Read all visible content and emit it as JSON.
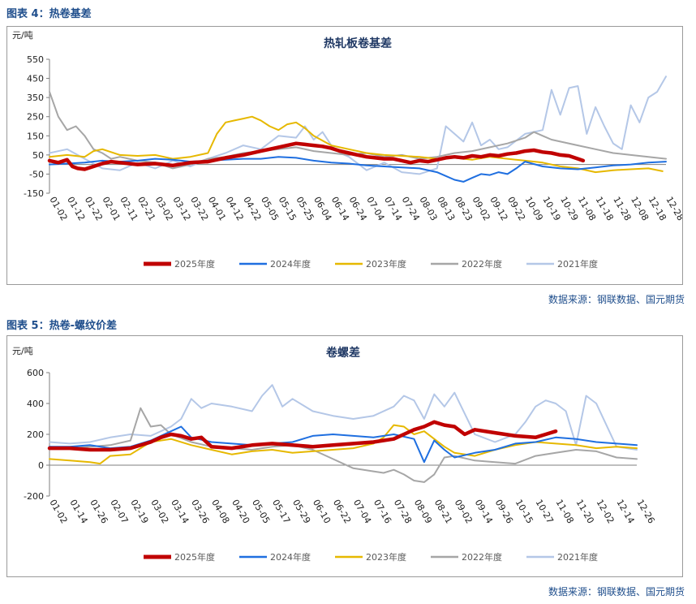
{
  "figures": [
    {
      "title": "图表 4：热卷基差",
      "source": "数据来源：钢联数据、国元期货"
    },
    {
      "title": "图表 5：热卷-螺纹价差",
      "source": "数据来源：钢联数据、国元期货"
    }
  ],
  "legend": [
    {
      "name": "2025年度",
      "color": "#c00000"
    },
    {
      "name": "2024年度",
      "color": "#1f6fe0"
    },
    {
      "name": "2023年度",
      "color": "#e6b800"
    },
    {
      "name": "2022年度",
      "color": "#a6a6a6"
    },
    {
      "name": "2021年度",
      "color": "#b4c7e7"
    }
  ],
  "chart_data": [
    {
      "type": "line",
      "title": "热轧板卷基差",
      "ylabel": "元/吨",
      "ylim": [
        -150,
        550
      ],
      "yticks": [
        -150,
        -50,
        50,
        150,
        250,
        350,
        450,
        550
      ],
      "x_ticks": [
        "01-02",
        "01-12",
        "01-22",
        "02-01",
        "02-11",
        "02-21",
        "03-02",
        "03-12",
        "03-22",
        "04-01",
        "04-12",
        "04-22",
        "05-05",
        "05-15",
        "05-25",
        "06-04",
        "06-14",
        "06-24",
        "07-04",
        "07-14",
        "07-24",
        "08-03",
        "08-13",
        "08-23",
        "09-02",
        "09-12",
        "09-22",
        "10-09",
        "10-19",
        "10-29",
        "11-08",
        "11-18",
        "11-28",
        "12-08",
        "12-18",
        "12-28"
      ],
      "x_unit": "tick index",
      "series": [
        {
          "name": "2025年度",
          "x": [
            0,
            0.5,
            1,
            1.3,
            1.6,
            2,
            2.5,
            3,
            3.5,
            4,
            5,
            6,
            7,
            8,
            9,
            10,
            11,
            12,
            12.5,
            13,
            13.5,
            14,
            14.5,
            15,
            15.5,
            16,
            16.5,
            17,
            17.5,
            18,
            18.5,
            19,
            19.5,
            20,
            20.5,
            21,
            21.5,
            22,
            22.5,
            23,
            23.5,
            24,
            24.5,
            25,
            25.5,
            26,
            26.5,
            27,
            27.5,
            28,
            28.5,
            29,
            29.5,
            30,
            30.3
          ],
          "values": [
            20,
            10,
            25,
            -10,
            -20,
            -25,
            -10,
            5,
            15,
            10,
            0,
            5,
            -5,
            10,
            15,
            35,
            50,
            70,
            80,
            90,
            100,
            110,
            105,
            100,
            95,
            85,
            70,
            60,
            50,
            40,
            35,
            30,
            30,
            20,
            10,
            20,
            15,
            25,
            35,
            40,
            35,
            45,
            40,
            50,
            45,
            55,
            60,
            70,
            75,
            65,
            60,
            50,
            45,
            30,
            20
          ]
        },
        {
          "name": "2024年度",
          "x": [
            0,
            1,
            2,
            3,
            4,
            5,
            6,
            7,
            8,
            9,
            10,
            11,
            12,
            13,
            14,
            15,
            16,
            17,
            18,
            19,
            20,
            21,
            22,
            22.5,
            23,
            23.5,
            24,
            24.5,
            25,
            25.5,
            26,
            26.5,
            27,
            28,
            29,
            30,
            31,
            32,
            33,
            34,
            35
          ],
          "values": [
            0,
            5,
            10,
            20,
            15,
            20,
            30,
            25,
            15,
            20,
            25,
            30,
            30,
            40,
            35,
            20,
            10,
            5,
            -5,
            -10,
            -15,
            -20,
            -40,
            -60,
            -80,
            -90,
            -70,
            -50,
            -55,
            -40,
            -50,
            -20,
            15,
            -10,
            -20,
            -25,
            -15,
            -5,
            0,
            10,
            15
          ]
        },
        {
          "name": "2023年度",
          "x": [
            0,
            1,
            2,
            2.5,
            3,
            4,
            5,
            6,
            7,
            8,
            9,
            9.5,
            10,
            10.5,
            11,
            11.5,
            12,
            12.5,
            13,
            13.5,
            14,
            14.5,
            15,
            16,
            17,
            18,
            19,
            20,
            21,
            22,
            23,
            24,
            25,
            26,
            27,
            28,
            29,
            30,
            31,
            32,
            33,
            34,
            34.8
          ],
          "values": [
            40,
            50,
            40,
            70,
            80,
            50,
            45,
            50,
            30,
            40,
            60,
            160,
            220,
            230,
            240,
            250,
            230,
            200,
            180,
            210,
            220,
            190,
            150,
            100,
            80,
            60,
            50,
            45,
            40,
            30,
            35,
            25,
            40,
            30,
            20,
            10,
            -10,
            -20,
            -40,
            -30,
            -25,
            -20,
            -35
          ]
        },
        {
          "name": "2022年度",
          "x": [
            0,
            0.5,
            1,
            1.5,
            2,
            2.5,
            3,
            3.5,
            4,
            5,
            6,
            7,
            8,
            9,
            10,
            11,
            12,
            13,
            14,
            15,
            16,
            17,
            18,
            19,
            20,
            21,
            22,
            23,
            24,
            25,
            26,
            27,
            27.5,
            28,
            28.5,
            29,
            30,
            31,
            32,
            33,
            34,
            35
          ],
          "values": [
            380,
            250,
            180,
            200,
            150,
            80,
            60,
            30,
            40,
            20,
            10,
            -20,
            0,
            30,
            40,
            60,
            70,
            80,
            90,
            70,
            60,
            50,
            60,
            40,
            50,
            30,
            40,
            60,
            70,
            90,
            110,
            140,
            170,
            150,
            130,
            120,
            100,
            80,
            60,
            50,
            40,
            30
          ]
        },
        {
          "name": "2021年度",
          "x": [
            0,
            1,
            2,
            3,
            4,
            5,
            6,
            7,
            8,
            9,
            10,
            11,
            12,
            13,
            14,
            14.5,
            15,
            15.5,
            16,
            16.5,
            17,
            18,
            19,
            20,
            21,
            22,
            22.5,
            23,
            23.5,
            24,
            24.5,
            25,
            25.5,
            26,
            27,
            28,
            28.5,
            29,
            29.5,
            30,
            30.5,
            31,
            31.5,
            32,
            32.5,
            33,
            33.5,
            34,
            34.5,
            35
          ],
          "values": [
            60,
            80,
            30,
            -20,
            -30,
            10,
            -20,
            20,
            -10,
            30,
            60,
            100,
            80,
            150,
            140,
            200,
            130,
            170,
            100,
            60,
            40,
            -30,
            10,
            -40,
            -50,
            -20,
            200,
            160,
            120,
            220,
            100,
            130,
            80,
            90,
            160,
            180,
            390,
            260,
            400,
            410,
            160,
            300,
            200,
            110,
            80,
            310,
            220,
            350,
            380,
            460
          ]
        }
      ]
    },
    {
      "type": "line",
      "title": "卷螺差",
      "ylabel": "元/吨",
      "ylim": [
        -200,
        600
      ],
      "yticks": [
        -200,
        0,
        200,
        400,
        600
      ],
      "x_ticks": [
        "01-02",
        "01-14",
        "01-26",
        "02-07",
        "02-19",
        "03-02",
        "03-14",
        "03-26",
        "04-08",
        "04-20",
        "05-05",
        "05-17",
        "05-29",
        "06-10",
        "06-22",
        "07-04",
        "07-16",
        "07-28",
        "08-09",
        "08-21",
        "09-02",
        "09-14",
        "09-26",
        "10-15",
        "10-27",
        "11-08",
        "11-20",
        "12-02",
        "12-14",
        "12-26"
      ],
      "x_unit": "tick index",
      "series": [
        {
          "name": "2025年度",
          "x": [
            0,
            1,
            2,
            3,
            4,
            5,
            5.5,
            6,
            6.5,
            7,
            7.5,
            8,
            9,
            10,
            11,
            12,
            13,
            14,
            15,
            16,
            17,
            17.5,
            18,
            18.5,
            19,
            19.5,
            20,
            20.5,
            21,
            22,
            23,
            24,
            24.5,
            25
          ],
          "values": [
            110,
            110,
            100,
            100,
            110,
            150,
            180,
            200,
            190,
            170,
            180,
            120,
            110,
            130,
            140,
            130,
            120,
            130,
            140,
            150,
            170,
            200,
            230,
            250,
            280,
            260,
            250,
            200,
            230,
            210,
            190,
            180,
            200,
            220
          ]
        },
        {
          "name": "2024年度",
          "x": [
            0,
            1,
            2,
            3,
            4,
            5,
            6,
            6.5,
            7,
            8,
            9,
            10,
            11,
            12,
            13,
            14,
            15,
            16,
            17,
            18,
            18.5,
            19,
            19.5,
            20,
            21,
            22,
            23,
            24,
            25,
            26,
            27,
            28,
            29
          ],
          "values": [
            120,
            120,
            130,
            110,
            120,
            160,
            220,
            250,
            180,
            150,
            140,
            130,
            140,
            150,
            190,
            200,
            190,
            180,
            200,
            170,
            20,
            160,
            100,
            50,
            80,
            100,
            140,
            150,
            180,
            170,
            150,
            140,
            130
          ]
        },
        {
          "name": "2023年度",
          "x": [
            0,
            1,
            2,
            2.5,
            3,
            4,
            5,
            6,
            7,
            8,
            9,
            10,
            11,
            12,
            13,
            14,
            15,
            16,
            16.5,
            17,
            17.5,
            18,
            18.5,
            19,
            19.5,
            20,
            21,
            22,
            23,
            24,
            25,
            26,
            27,
            28,
            29
          ],
          "values": [
            40,
            30,
            20,
            10,
            60,
            70,
            150,
            170,
            130,
            100,
            70,
            90,
            100,
            80,
            90,
            100,
            110,
            140,
            180,
            260,
            250,
            200,
            220,
            170,
            120,
            80,
            60,
            100,
            130,
            150,
            140,
            130,
            110,
            120,
            110
          ]
        },
        {
          "name": "2022年度",
          "x": [
            0,
            1,
            2,
            3,
            4,
            4.5,
            5,
            5.5,
            6,
            7,
            8,
            9,
            10,
            11,
            12,
            13,
            14,
            15,
            16,
            16.5,
            17,
            17.5,
            18,
            18.5,
            19,
            19.5,
            20,
            21,
            22,
            23,
            24,
            25,
            26,
            27,
            28,
            29
          ],
          "values": [
            120,
            110,
            120,
            130,
            160,
            370,
            250,
            260,
            200,
            150,
            120,
            110,
            100,
            120,
            130,
            100,
            40,
            -20,
            -40,
            -50,
            -30,
            -60,
            -100,
            -110,
            -60,
            50,
            60,
            30,
            20,
            10,
            60,
            80,
            100,
            90,
            50,
            40
          ]
        },
        {
          "name": "2021年度",
          "x": [
            0,
            1,
            2,
            3,
            4,
            5,
            6,
            6.5,
            7,
            7.5,
            8,
            9,
            10,
            10.5,
            11,
            11.5,
            12,
            13,
            14,
            15,
            16,
            17,
            17.5,
            18,
            18.5,
            19,
            19.5,
            20,
            21,
            22,
            23,
            23.5,
            24,
            24.5,
            25,
            25.5,
            26,
            26.5,
            27,
            28,
            29
          ],
          "values": [
            150,
            140,
            150,
            180,
            200,
            190,
            250,
            300,
            430,
            370,
            400,
            380,
            350,
            450,
            520,
            380,
            430,
            350,
            320,
            300,
            320,
            380,
            450,
            420,
            300,
            460,
            380,
            470,
            200,
            150,
            200,
            280,
            380,
            420,
            400,
            350,
            130,
            450,
            400,
            120,
            100
          ]
        }
      ]
    }
  ]
}
